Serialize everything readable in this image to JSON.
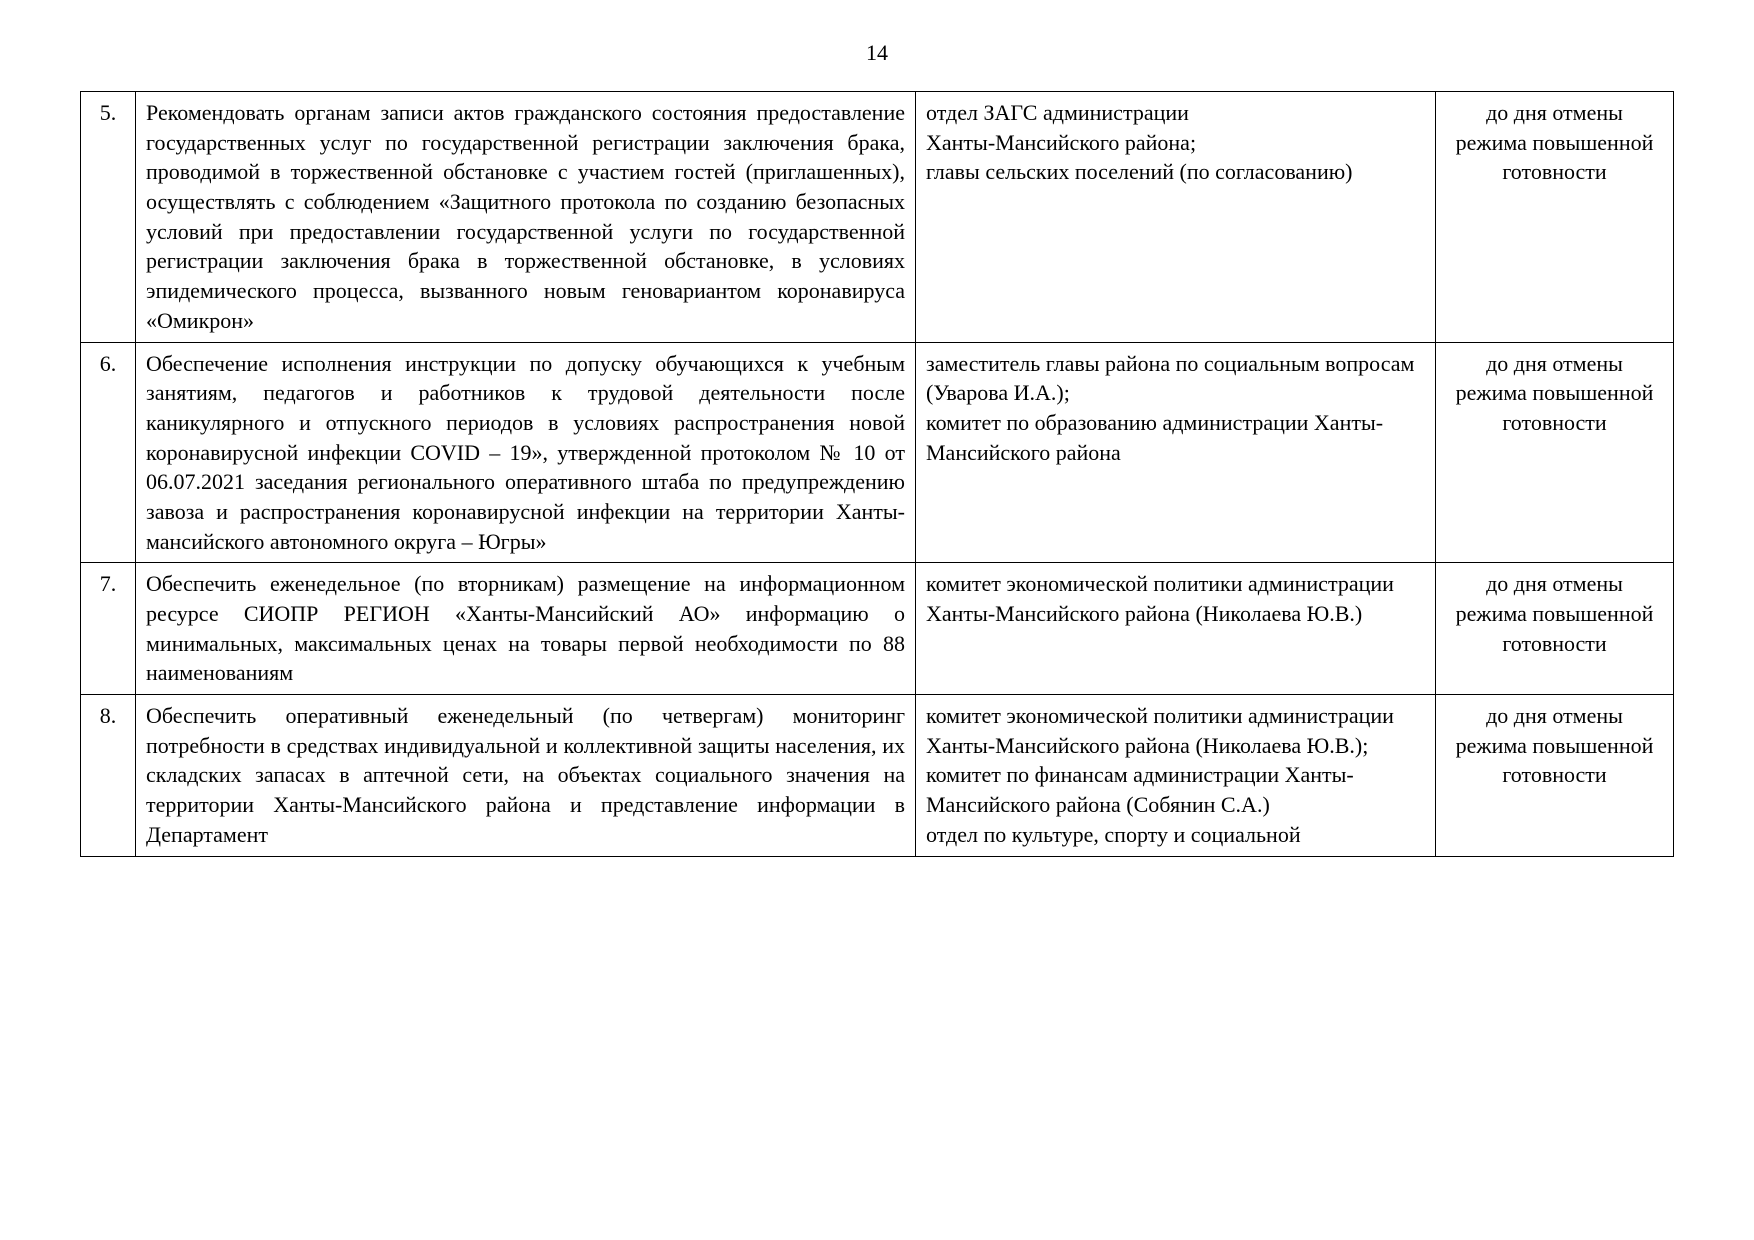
{
  "pageNumber": "14",
  "rows": [
    {
      "num": "5.",
      "description": "Рекомендовать органам записи актов гражданского состояния предоставление государственных услуг по государственной регистрации заключения брака, проводимой в торжественной обстановке с участием гостей (приглашенных), осуществлять с соблюдением «Защитного протокола по созданию безопасных условий при предоставлении государственной услуги по государственной регистрации заключения брака в торжественной обстановке, в условиях эпидемического процесса, вызванного новым геновариантом коронавируса «Омикрон»",
      "responsible": "отдел ЗАГС администрации\nХанты-Мансийского района;\nглавы сельских поселений (по согласованию)",
      "deadline": "до дня отмены\nрежима повышенной\nготовности"
    },
    {
      "num": "6.",
      "description": "Обеспечение исполнения инструкции по допуску обучающихся к учебным занятиям, педагогов и работников к трудовой деятельности после каникулярного и отпускного периодов в условиях распространения новой коронавирусной инфекции COVID – 19», утвержденной протоколом № 10 от 06.07.2021 заседания регионального оперативного штаба по предупреждению завоза и распространения коронавирусной инфекции на территории Ханты-мансийского автономного округа – Югры»",
      "responsible": "заместитель главы района по социальным вопросам (Уварова И.А.);\nкомитет по образованию администрации Ханты-Мансийского района",
      "deadline": "до дня отмены\nрежима повышенной\nготовности"
    },
    {
      "num": "7.",
      "description": "Обеспечить еженедельное (по вторникам) размещение на информационном ресурсе СИОПР РЕГИОН «Ханты-Мансийский АО» информацию о минимальных, максимальных ценах на товары первой необходимости по 88 наименованиям",
      "responsible": "комитет экономической политики администрации Ханты-Мансийского района (Николаева Ю.В.)",
      "deadline": "до дня отмены\nрежима повышенной\nготовности"
    },
    {
      "num": "8.",
      "description": "Обеспечить оперативный еженедельный (по четвергам) мониторинг потребности в средствах индивидуальной и коллективной защиты населения, их складских запасах в аптечной сети, на объектах социального значения на территории Ханты-Мансийского района и представление информации в Департамент",
      "responsible": "комитет экономической политики администрации Ханты-Мансийского района (Николаева Ю.В.);\nкомитет по финансам администрации Ханты-Мансийского района (Собянин С.А.)\nотдел по культуре, спорту и социальной",
      "deadline": "до дня отмены\nрежима повышенной\nготовности"
    }
  ]
}
